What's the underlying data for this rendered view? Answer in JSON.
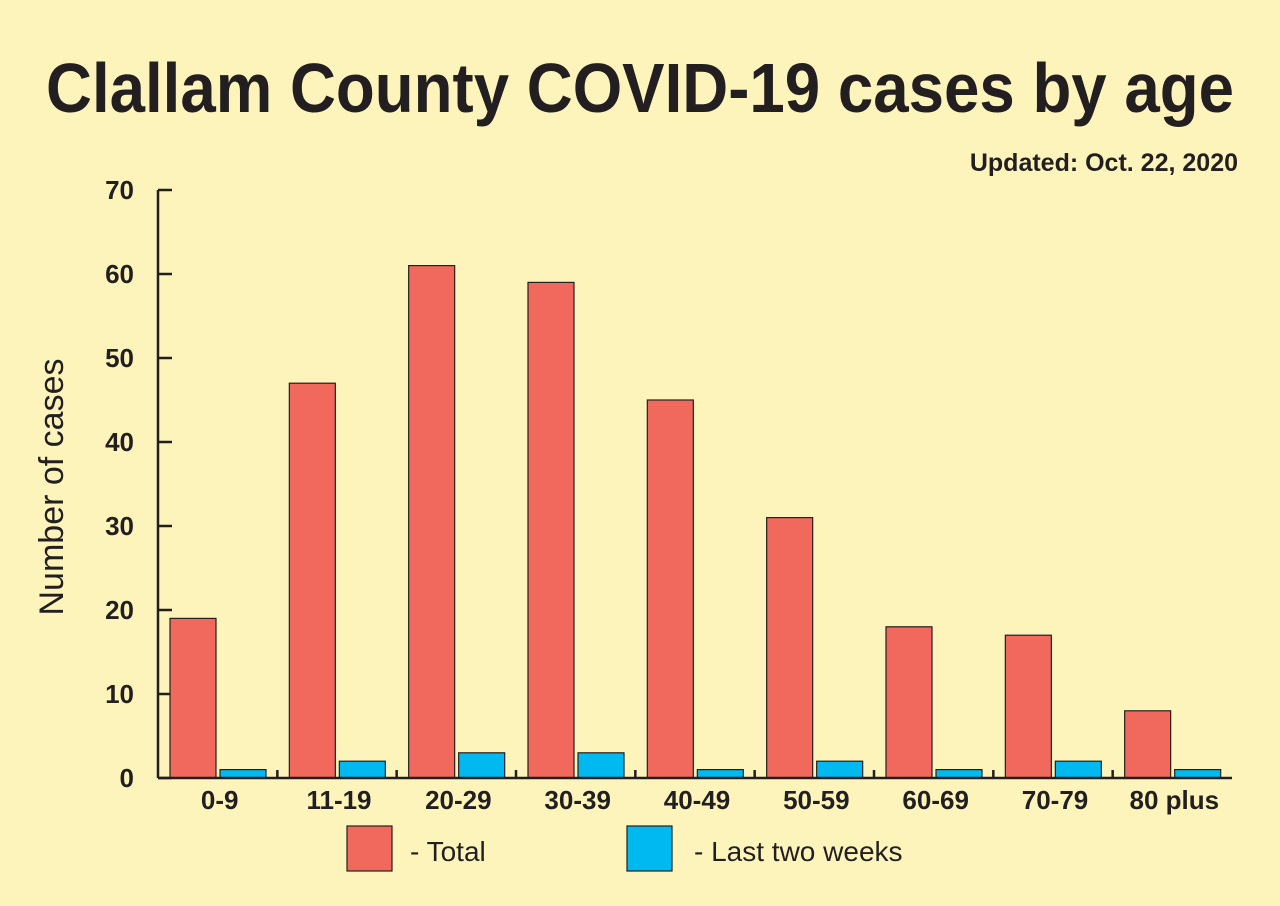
{
  "chart_data": {
    "type": "bar",
    "title": "Clallam County COVID-19 cases by age",
    "subtitle": "Updated: Oct. 22, 2020",
    "xlabel": "",
    "ylabel": "Number of cases",
    "ylim": [
      0,
      70
    ],
    "yticks": [
      "0",
      "10",
      "20",
      "30",
      "40",
      "50",
      "60",
      "70"
    ],
    "categories": [
      "0-9",
      "11-19",
      "20-29",
      "30-39",
      "40-49",
      "50-59",
      "60-69",
      "70-79",
      "80 plus"
    ],
    "series": [
      {
        "name": "Total",
        "legend_label": "- Total",
        "color": "#f0695c",
        "values": [
          19,
          47,
          61,
          59,
          45,
          31,
          18,
          17,
          8
        ]
      },
      {
        "name": "Last two weeks",
        "legend_label": "- Last two weeks",
        "color": "#00b9f1",
        "values": [
          1,
          2,
          3,
          3,
          1,
          2,
          1,
          2,
          1
        ]
      }
    ],
    "grid": false,
    "legend_position": "bottom-center"
  },
  "colors": {
    "background": "#fcf4bb",
    "ink": "#231f20"
  }
}
